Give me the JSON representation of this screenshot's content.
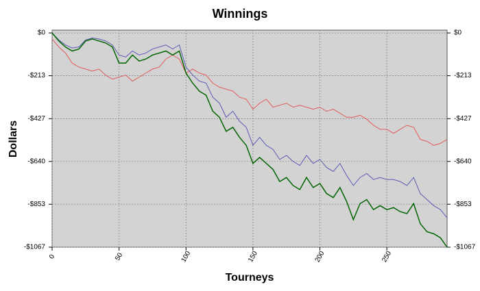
{
  "chart_data": {
    "type": "line",
    "title": "Winnings",
    "x_label": "Tourneys",
    "y_label": "Dollars",
    "x": [
      0,
      5,
      10,
      15,
      20,
      25,
      30,
      35,
      40,
      45,
      50,
      55,
      60,
      65,
      70,
      75,
      80,
      85,
      90,
      95,
      100,
      105,
      110,
      115,
      120,
      125,
      130,
      135,
      140,
      145,
      150,
      155,
      160,
      165,
      170,
      175,
      180,
      185,
      190,
      195,
      200,
      205,
      210,
      215,
      220,
      225,
      230,
      235,
      240,
      245,
      250,
      255,
      260,
      265,
      270,
      275,
      280,
      285,
      290,
      295
    ],
    "series": [
      {
        "color": "#e05a5a",
        "values": [
          -30,
          -70,
          -100,
          -150,
          -170,
          -180,
          -190,
          -180,
          -210,
          -230,
          -220,
          -210,
          -240,
          -220,
          -200,
          -180,
          -170,
          -130,
          -110,
          -130,
          -200,
          -180,
          -200,
          -210,
          -250,
          -270,
          -280,
          -290,
          -320,
          -330,
          -380,
          -350,
          -330,
          -370,
          -360,
          -350,
          -370,
          -360,
          -370,
          -380,
          -370,
          -390,
          -380,
          -400,
          -420,
          -420,
          -410,
          -430,
          -460,
          -480,
          -480,
          -500,
          -480,
          -460,
          -470,
          -530,
          -540,
          -560,
          -550,
          -530
        ]
      },
      {
        "color": "#5a5ab4",
        "values": [
          0,
          -35,
          -60,
          -75,
          -70,
          -35,
          -25,
          -30,
          -40,
          -60,
          -110,
          -120,
          -90,
          -110,
          -100,
          -80,
          -70,
          -60,
          -80,
          -60,
          -170,
          -210,
          -240,
          -250,
          -320,
          -350,
          -420,
          -390,
          -440,
          -470,
          -560,
          -520,
          -560,
          -580,
          -630,
          -610,
          -640,
          -660,
          -610,
          -650,
          -630,
          -670,
          -690,
          -650,
          -710,
          -760,
          -720,
          -700,
          -730,
          -720,
          -730,
          -730,
          -740,
          -760,
          -720,
          -800,
          -830,
          -860,
          -880,
          -920
        ]
      },
      {
        "color": "#006400",
        "values": [
          0,
          -40,
          -70,
          -90,
          -80,
          -40,
          -30,
          -40,
          -50,
          -70,
          -150,
          -150,
          -110,
          -140,
          -130,
          -110,
          -100,
          -90,
          -110,
          -90,
          -200,
          -250,
          -290,
          -310,
          -390,
          -420,
          -490,
          -470,
          -520,
          -560,
          -650,
          -620,
          -650,
          -680,
          -740,
          -720,
          -760,
          -780,
          -720,
          -770,
          -750,
          -800,
          -820,
          -770,
          -840,
          -930,
          -850,
          -830,
          -880,
          -860,
          -880,
          -870,
          -890,
          -900,
          -850,
          -950,
          -990,
          -1000,
          -1020,
          -1067
        ]
      }
    ],
    "xlim": [
      0,
      295
    ],
    "xticks": [
      0,
      50,
      100,
      150,
      200,
      250
    ],
    "ylim": [
      -1067,
      14
    ],
    "yticks": [
      {
        "value": 0,
        "label": "$0"
      },
      {
        "value": -213,
        "label": "-$213"
      },
      {
        "value": -427,
        "label": "-$427"
      },
      {
        "value": -640,
        "label": "-$640"
      },
      {
        "value": -853,
        "label": "-$853"
      },
      {
        "value": -1067,
        "label": "-$1067"
      }
    ],
    "grid": true
  }
}
